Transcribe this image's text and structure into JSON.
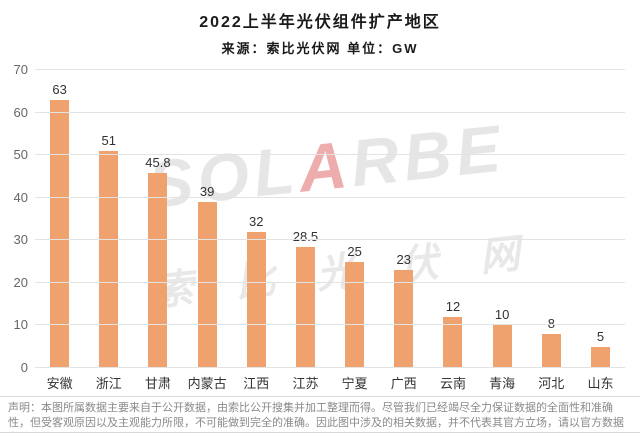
{
  "header": {
    "title": "2022上半年光伏组件扩产地区",
    "subtitle": "来源：索比光伏网 单位：GW"
  },
  "watermark": {
    "brand_prefix": "SOL",
    "brand_accent": "A",
    "brand_suffix": "RBE",
    "cn": "索比光伏网"
  },
  "chart_data": {
    "type": "bar",
    "title": "2022上半年光伏组件扩产地区",
    "subtitle": "来源：索比光伏网 单位：GW",
    "categories": [
      "安徽",
      "浙江",
      "甘肃",
      "内蒙古",
      "江西",
      "江苏",
      "宁夏",
      "广西",
      "云南",
      "青海",
      "河北",
      "山东"
    ],
    "values": [
      63,
      51,
      45.8,
      39,
      32,
      28.5,
      25,
      23,
      12,
      10,
      8,
      5
    ],
    "unit": "GW",
    "xlabel": "",
    "ylabel": "",
    "ylim": [
      0,
      70
    ],
    "yticks": [
      0,
      10,
      20,
      30,
      40,
      50,
      60,
      70
    ],
    "grid": true,
    "legend": "none",
    "bar_color": "#EFA26E",
    "gridline_color": "#e3e3e3"
  },
  "disclaimer": {
    "text": "声明：本图所属数据主要来自于公开数据，由索比公开搜集并加工整理而得。尽管我们已经竭尽全力保证数据的全面性和准确性，但受客观原因以及主观能力所限，不可能做到完全的准确。因此图中涉及的相关数据，并不代表其官方立场，请以官方数据为准。"
  }
}
